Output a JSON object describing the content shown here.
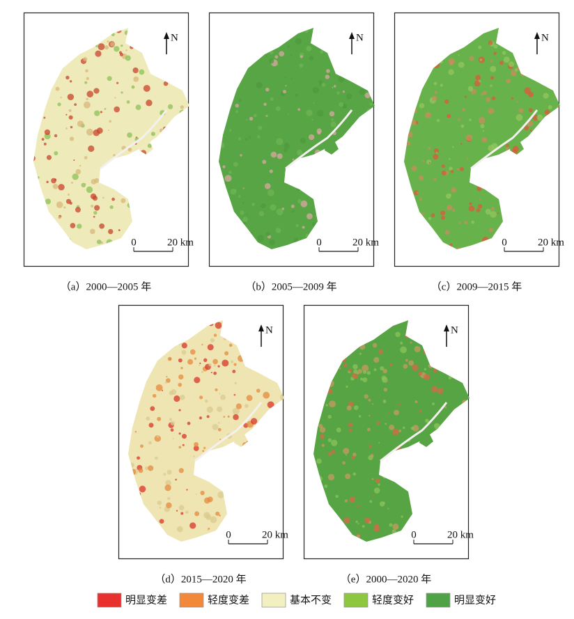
{
  "panels": [
    {
      "caption": "（a）2000—2005 年",
      "north": "N",
      "scale_start": "0",
      "scale_end": "20 km",
      "colors": [
        "#eeeab9",
        "#d9b77a",
        "#c8432e",
        "#8cc05a"
      ]
    },
    {
      "caption": "（b）2005—2009 年",
      "north": "N",
      "scale_start": "0",
      "scale_end": "20 km",
      "colors": [
        "#58a545",
        "#4e9a3d",
        "#6db552",
        "#d9a8a0"
      ]
    },
    {
      "caption": "（c）2009—2015 年",
      "north": "N",
      "scale_start": "0",
      "scale_end": "20 km",
      "colors": [
        "#68b24b",
        "#c98c5e",
        "#dd5a3a",
        "#93c55d"
      ]
    },
    {
      "caption": "（d）2015—2020 年",
      "north": "N",
      "scale_start": "0",
      "scale_end": "20 km",
      "colors": [
        "#eee5b2",
        "#e58a3e",
        "#d8342a",
        "#d9c98f"
      ]
    },
    {
      "caption": "（e）2000—2020 年",
      "north": "N",
      "scale_start": "0",
      "scale_end": "20 km",
      "colors": [
        "#56a444",
        "#8cc35a",
        "#c99a62",
        "#d86a46"
      ]
    }
  ],
  "legend": [
    {
      "label": "明显变差",
      "color": "#e8312d"
    },
    {
      "label": "轻度变差",
      "color": "#f2893a"
    },
    {
      "label": "基本不变",
      "color": "#f2f0c0"
    },
    {
      "label": "轻度变好",
      "color": "#8dc63f"
    },
    {
      "label": "明显变好",
      "color": "#4fa245"
    }
  ]
}
